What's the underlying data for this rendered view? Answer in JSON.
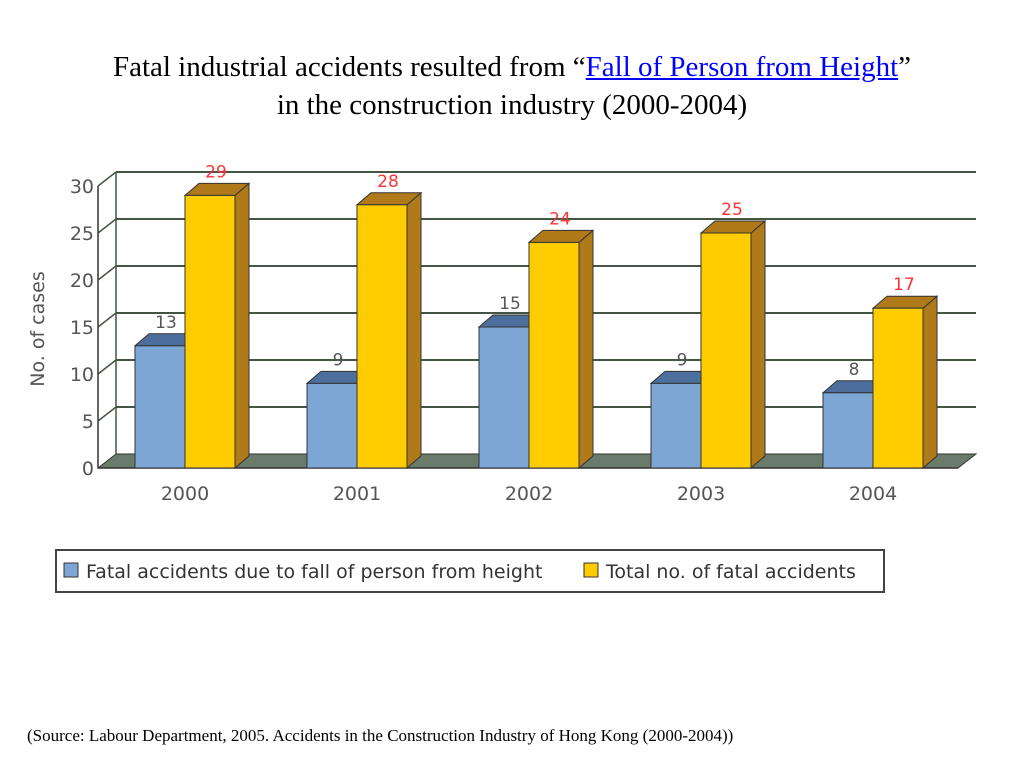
{
  "title": {
    "line1_prefix": "Fatal industrial accidents resulted from “",
    "line1_link": "Fall of Person from Height",
    "line1_suffix": "”",
    "line2": "in the construction industry (2000-2004)"
  },
  "source": "(Source: Labour Department, 2005. Accidents in the Construction Industry of Hong Kong (2000-2004))",
  "chart_data": {
    "type": "bar",
    "categories": [
      "2000",
      "2001",
      "2002",
      "2003",
      "2004"
    ],
    "series": [
      {
        "name": "Fatal accidents due to fall of person from height",
        "values": [
          13,
          9,
          15,
          9,
          8
        ],
        "color": "#7ea6d4"
      },
      {
        "name": "Total no. of fatal accidents",
        "values": [
          29,
          28,
          24,
          25,
          17
        ],
        "color": "#ffcc00"
      }
    ],
    "ylabel": "No. of cases",
    "ylim": [
      0,
      30
    ],
    "yticks": [
      0,
      5,
      10,
      15,
      20,
      25,
      30
    ],
    "grid": true,
    "legend": "bottom",
    "label_colors": [
      "#555555",
      "#ff3333"
    ],
    "side_colors": [
      "#4d6f9e",
      "#b07a1a"
    ]
  }
}
